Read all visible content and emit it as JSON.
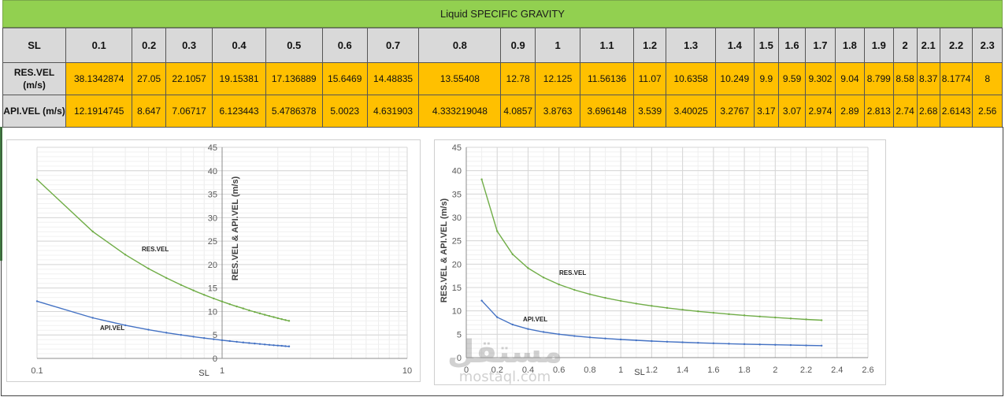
{
  "sheet": {
    "title": "Liquid SPECIFIC GRAVITY",
    "header_label": "SL",
    "sl_values": [
      "0.1",
      "0.2",
      "0.3",
      "0.4",
      "0.5",
      "0.6",
      "0.7",
      "0.8",
      "0.9",
      "1",
      "1.1",
      "1.2",
      "1.3",
      "1.4",
      "1.5",
      "1.6",
      "1.7",
      "1.8",
      "1.9",
      "2",
      "2.1",
      "2.2",
      "2.3"
    ],
    "res_label": "RES.VEL (m/s)",
    "api_label": "API.VEL (m/s)",
    "res_values": [
      "38.1342874",
      "27.05",
      "22.1057",
      "19.15381",
      "17.136889",
      "15.6469",
      "14.48835",
      "13.55408",
      "12.78",
      "12.125",
      "11.56136",
      "11.07",
      "10.6358",
      "10.249",
      "9.9",
      "9.59",
      "9.302",
      "9.04",
      "8.799",
      "8.58",
      "8.37",
      "8.1774",
      "8"
    ],
    "api_values": [
      "12.1914745",
      "8.647",
      "7.06717",
      "6.123443",
      "5.4786378",
      "5.0023",
      "4.631903",
      "4.333219048",
      "4.0857",
      "3.8763",
      "3.696148",
      "3.539",
      "3.40025",
      "3.2767",
      "3.17",
      "3.07",
      "2.974",
      "2.89",
      "2.813",
      "2.74",
      "2.68",
      "2.6143",
      "2.56"
    ]
  },
  "colors": {
    "title_bg": "#92d050",
    "header_bg": "#d9d9d9",
    "data_bg": "#ffc000",
    "res_line": "#70ad47",
    "api_line": "#4472c4"
  },
  "chart_data": [
    {
      "type": "line",
      "x_scale": "log",
      "x": [
        0.1,
        0.2,
        0.3,
        0.4,
        0.5,
        0.6,
        0.7,
        0.8,
        0.9,
        1,
        1.1,
        1.2,
        1.3,
        1.4,
        1.5,
        1.6,
        1.7,
        1.8,
        1.9,
        2,
        2.1,
        2.2,
        2.3
      ],
      "series": [
        {
          "name": "RES.VEL",
          "values": [
            38.13,
            27.05,
            22.11,
            19.15,
            17.14,
            15.65,
            14.49,
            13.55,
            12.78,
            12.13,
            11.56,
            11.07,
            10.64,
            10.25,
            9.9,
            9.59,
            9.3,
            9.04,
            8.8,
            8.58,
            8.37,
            8.18,
            8
          ]
        },
        {
          "name": "API.VEL",
          "values": [
            12.19,
            8.65,
            7.07,
            6.12,
            5.48,
            5.0,
            4.63,
            4.33,
            4.09,
            3.88,
            3.7,
            3.54,
            3.4,
            3.28,
            3.17,
            3.07,
            2.97,
            2.89,
            2.81,
            2.74,
            2.68,
            2.61,
            2.56
          ]
        }
      ],
      "ylim": [
        0,
        45
      ],
      "xlim": [
        0.1,
        10
      ],
      "y_ticks": [
        "0",
        "5",
        "10",
        "15",
        "20",
        "25",
        "30",
        "35",
        "40",
        "45"
      ],
      "x_ticks": [
        "0.1",
        "1",
        "10"
      ],
      "xlabel": "SL",
      "ylabel": "RES.VEL  &  API.VEL (m/s)",
      "grid": true
    },
    {
      "type": "line",
      "x": [
        0.1,
        0.2,
        0.3,
        0.4,
        0.5,
        0.6,
        0.7,
        0.8,
        0.9,
        1,
        1.1,
        1.2,
        1.3,
        1.4,
        1.5,
        1.6,
        1.7,
        1.8,
        1.9,
        2,
        2.1,
        2.2,
        2.3
      ],
      "series": [
        {
          "name": "RES.VEL",
          "values": [
            38.13,
            27.05,
            22.11,
            19.15,
            17.14,
            15.65,
            14.49,
            13.55,
            12.78,
            12.13,
            11.56,
            11.07,
            10.64,
            10.25,
            9.9,
            9.59,
            9.3,
            9.04,
            8.8,
            8.58,
            8.37,
            8.18,
            8
          ]
        },
        {
          "name": "API.VEL",
          "values": [
            12.19,
            8.65,
            7.07,
            6.12,
            5.48,
            5.0,
            4.63,
            4.33,
            4.09,
            3.88,
            3.7,
            3.54,
            3.4,
            3.28,
            3.17,
            3.07,
            2.97,
            2.89,
            2.81,
            2.74,
            2.68,
            2.61,
            2.56
          ]
        }
      ],
      "ylim": [
        0,
        45
      ],
      "xlim": [
        0,
        2.6
      ],
      "y_ticks": [
        "0",
        "5",
        "10",
        "15",
        "20",
        "25",
        "30",
        "35",
        "40",
        "45"
      ],
      "x_ticks": [
        "0",
        "0.2",
        "0.4",
        "0.6",
        "0.8",
        "1",
        "1.2",
        "1.4",
        "1.6",
        "1.8",
        "2",
        "2.2",
        "2.4",
        "2.6"
      ],
      "xlabel": "SL",
      "ylabel": "RES.VEL  &  API.VEL (m/s)",
      "grid": true
    }
  ],
  "watermark": {
    "arabic": "مستقل",
    "latin": "mostaql.com"
  }
}
